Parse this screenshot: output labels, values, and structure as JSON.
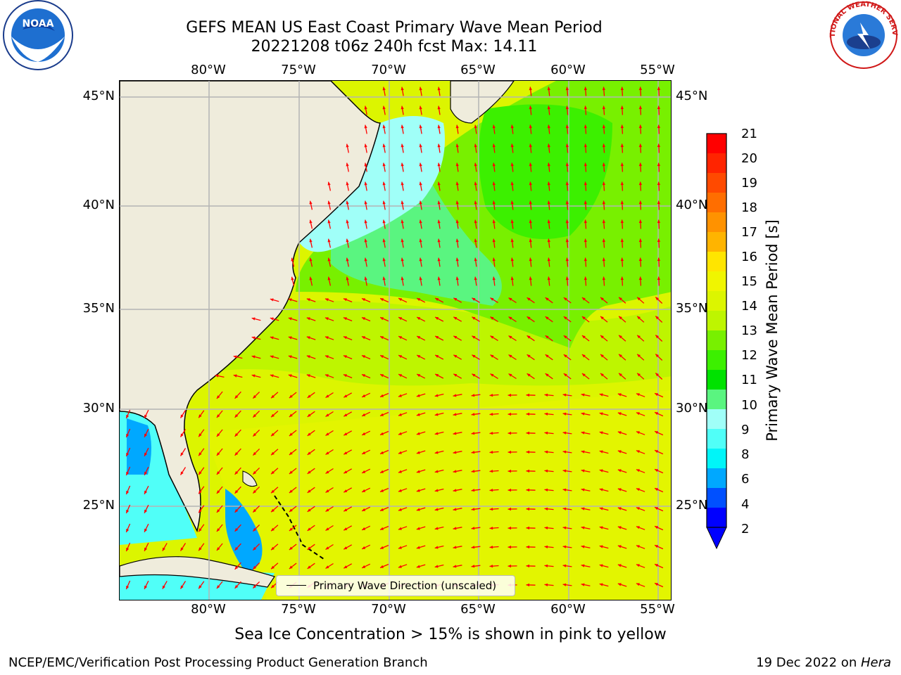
{
  "title": {
    "line1": "GEFS MEAN US East Coast Primary Wave Mean Period",
    "line2": "20221208 t06z 240h fcst   Max: 14.11"
  },
  "axes": {
    "lon_labels": [
      "80°W",
      "75°W",
      "70°W",
      "65°W",
      "60°W",
      "55°W"
    ],
    "lat_labels": [
      "45°N",
      "40°N",
      "35°N",
      "30°N",
      "25°N"
    ]
  },
  "legend": {
    "label": "Primary Wave Direction (unscaled)"
  },
  "colorbar": {
    "title": "Primary Wave Mean Period [s]",
    "labels": [
      "21",
      "20",
      "19",
      "18",
      "17",
      "16",
      "15",
      "14",
      "13",
      "12",
      "11",
      "10",
      "9",
      "8",
      "6",
      "4",
      "2"
    ],
    "colors": [
      "#ff0000",
      "#ff2400",
      "#ff4a00",
      "#ff6e00",
      "#ff9200",
      "#ffb400",
      "#ffe500",
      "#f0f500",
      "#dcf500",
      "#bef500",
      "#78f000",
      "#3cf000",
      "#00e200",
      "#5af580",
      "#a0fff8",
      "#50fff8",
      "#00f5f8",
      "#00a8ff",
      "#0050ff",
      "#0000ff"
    ],
    "extend_color": "#0000ff"
  },
  "logos": {
    "noaa_text": "NOAA",
    "nws_text": "NATIONAL WEATHER SERVICE"
  },
  "footer": {
    "note": "Sea Ice Concentration > 15% is shown in pink to yellow",
    "left": "NCEP/EMC/Verification Post Processing Product Generation Branch",
    "date": "19 Dec 2022 on ",
    "host": "Hera"
  },
  "map_colors": {
    "land": "#efecdc",
    "grid": "#b4b4b4",
    "arrow": "#ff0000",
    "coast": "#000000"
  }
}
